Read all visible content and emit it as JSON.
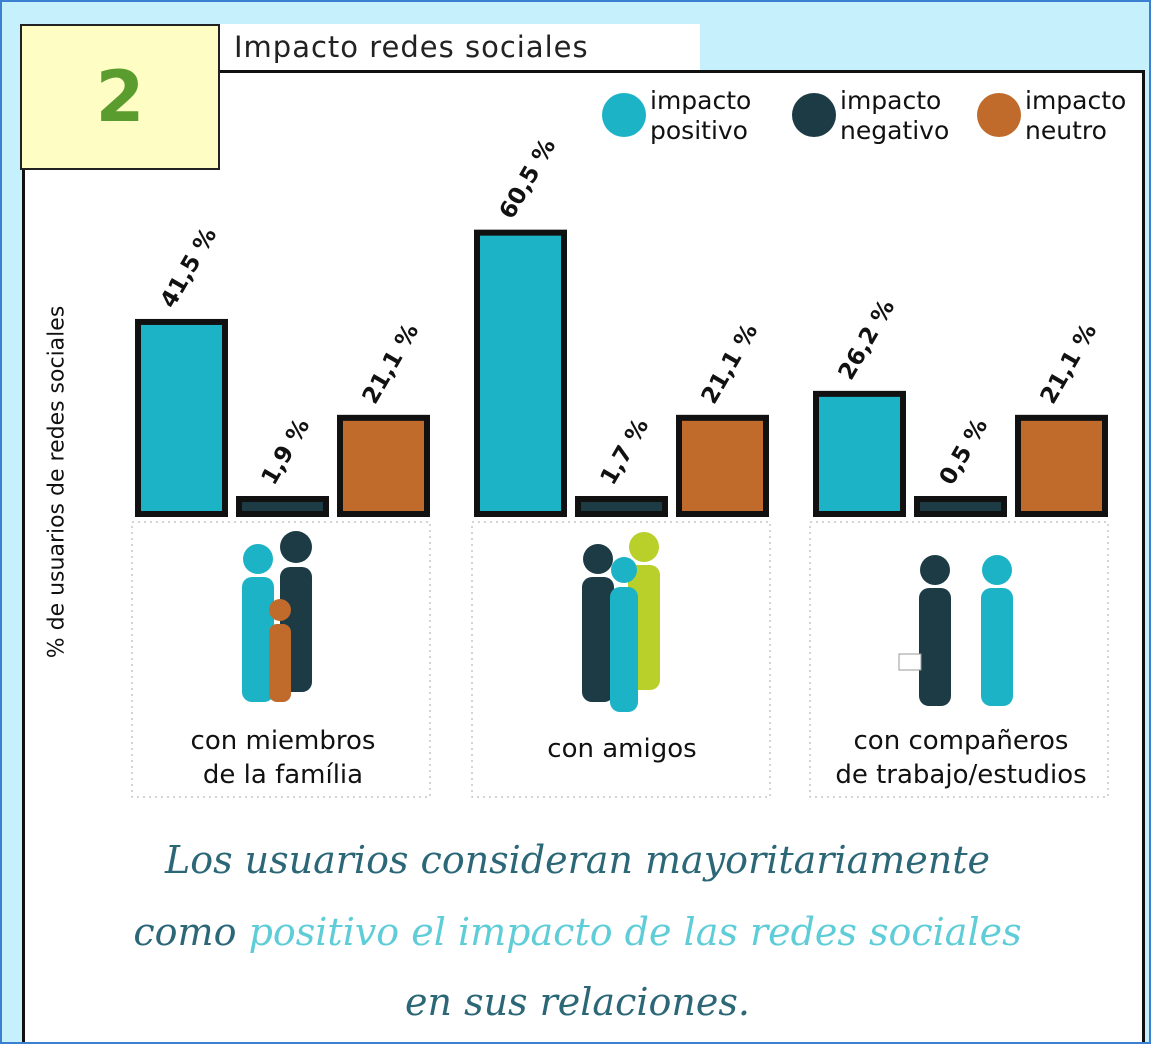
{
  "badge": "2",
  "chart_data": {
    "type": "bar",
    "title": "Impacto redes sociales",
    "y_label": "% de usuarios de redes sociales",
    "categories": [
      "con miembros\nde la família",
      "con amigos",
      "con compañeros\nde trabajo/estudios"
    ],
    "series": [
      {
        "name": "impacto\npositivo",
        "color": "#1cb3c6",
        "values": [
          41.5,
          60.5,
          26.2
        ],
        "value_labels": [
          "41,5 %",
          "60,5 %",
          "26,2 %"
        ]
      },
      {
        "name": "impacto\nnegativo",
        "color": "#1d3b45",
        "values": [
          1.9,
          1.7,
          0.5
        ],
        "value_labels": [
          "1,9 %",
          "1,7 %",
          "0,5 %"
        ]
      },
      {
        "name": "impacto\nneutro",
        "color": "#c06a2b",
        "values": [
          21.1,
          21.1,
          21.1
        ],
        "value_labels": [
          "21,1 %",
          "21,1 %",
          "21,1 %"
        ]
      }
    ],
    "caption": {
      "line1": "Los usuarios consideran mayoritariamente",
      "line2a": "como",
      "line2b": "positivo el impacto de las redes sociales",
      "line3": "en sus relaciones."
    }
  }
}
